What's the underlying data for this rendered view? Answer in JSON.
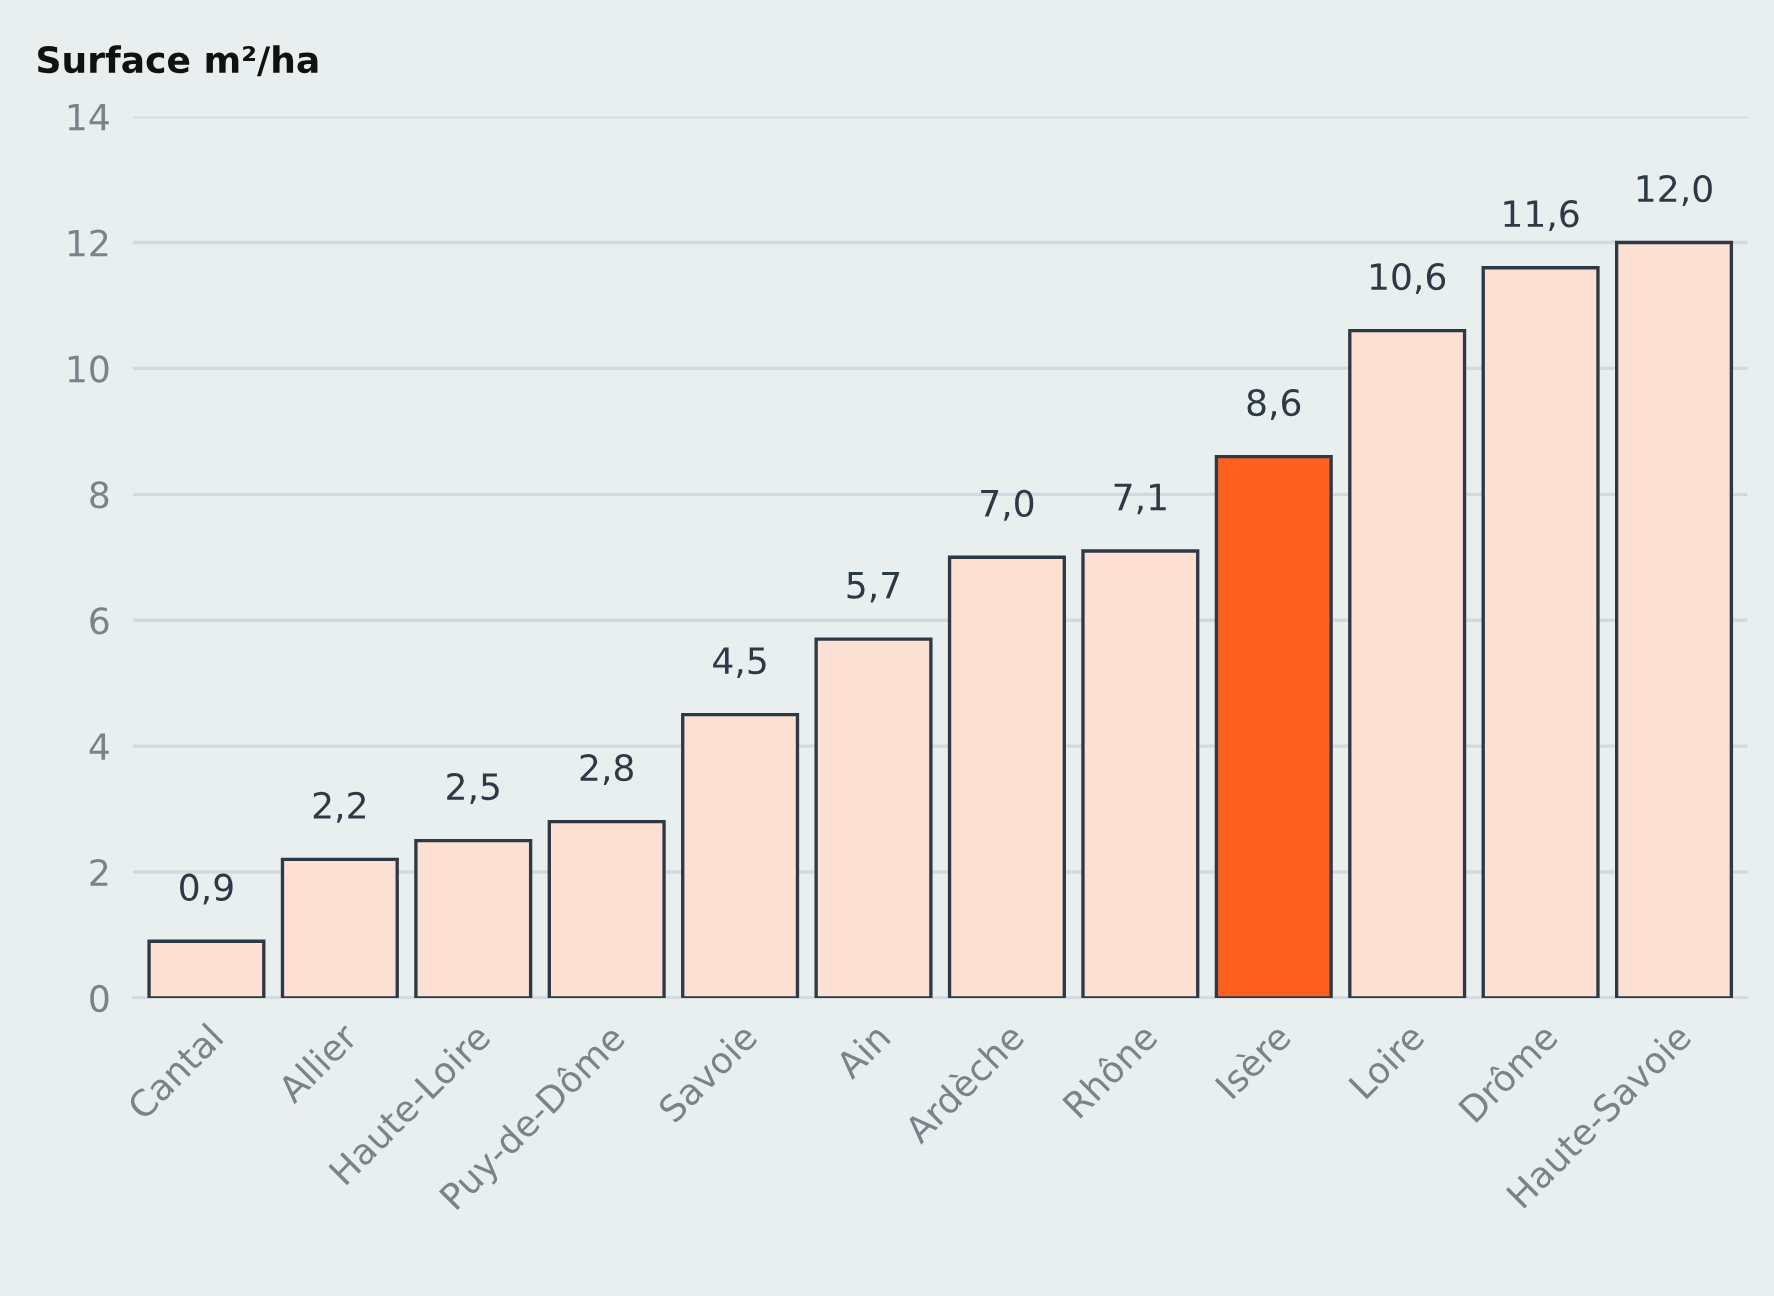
{
  "chart_data": {
    "type": "bar",
    "ylabel": "Surface m²/ha",
    "categories": [
      "Cantal",
      "Allier",
      "Haute-Loire",
      "Puy-de-Dôme",
      "Savoie",
      "Ain",
      "Ardèche",
      "Rhône",
      "Isère",
      "Loire",
      "Drôme",
      "Haute-Savoie"
    ],
    "values": [
      0.9,
      2.2,
      2.5,
      2.8,
      4.5,
      5.7,
      7.0,
      7.1,
      8.6,
      10.6,
      11.6,
      12.0
    ],
    "value_labels": [
      "0,9",
      "2,2",
      "2,5",
      "2,8",
      "4,5",
      "5,7",
      "7,0",
      "7,1",
      "8,6",
      "10,6",
      "11,6",
      "12,0"
    ],
    "colors": [
      "#fde0d4",
      "#fde0d4",
      "#fde0d4",
      "#fde0d4",
      "#fde0d4",
      "#fde0d4",
      "#fde0d4",
      "#fde0d4",
      "#ff5f1f",
      "#fde0d4",
      "#fde0d4",
      "#fde0d4"
    ],
    "ylim": [
      0,
      14
    ],
    "yticks": [
      0,
      2,
      4,
      6,
      8,
      10,
      12,
      14
    ],
    "grid": "y"
  }
}
